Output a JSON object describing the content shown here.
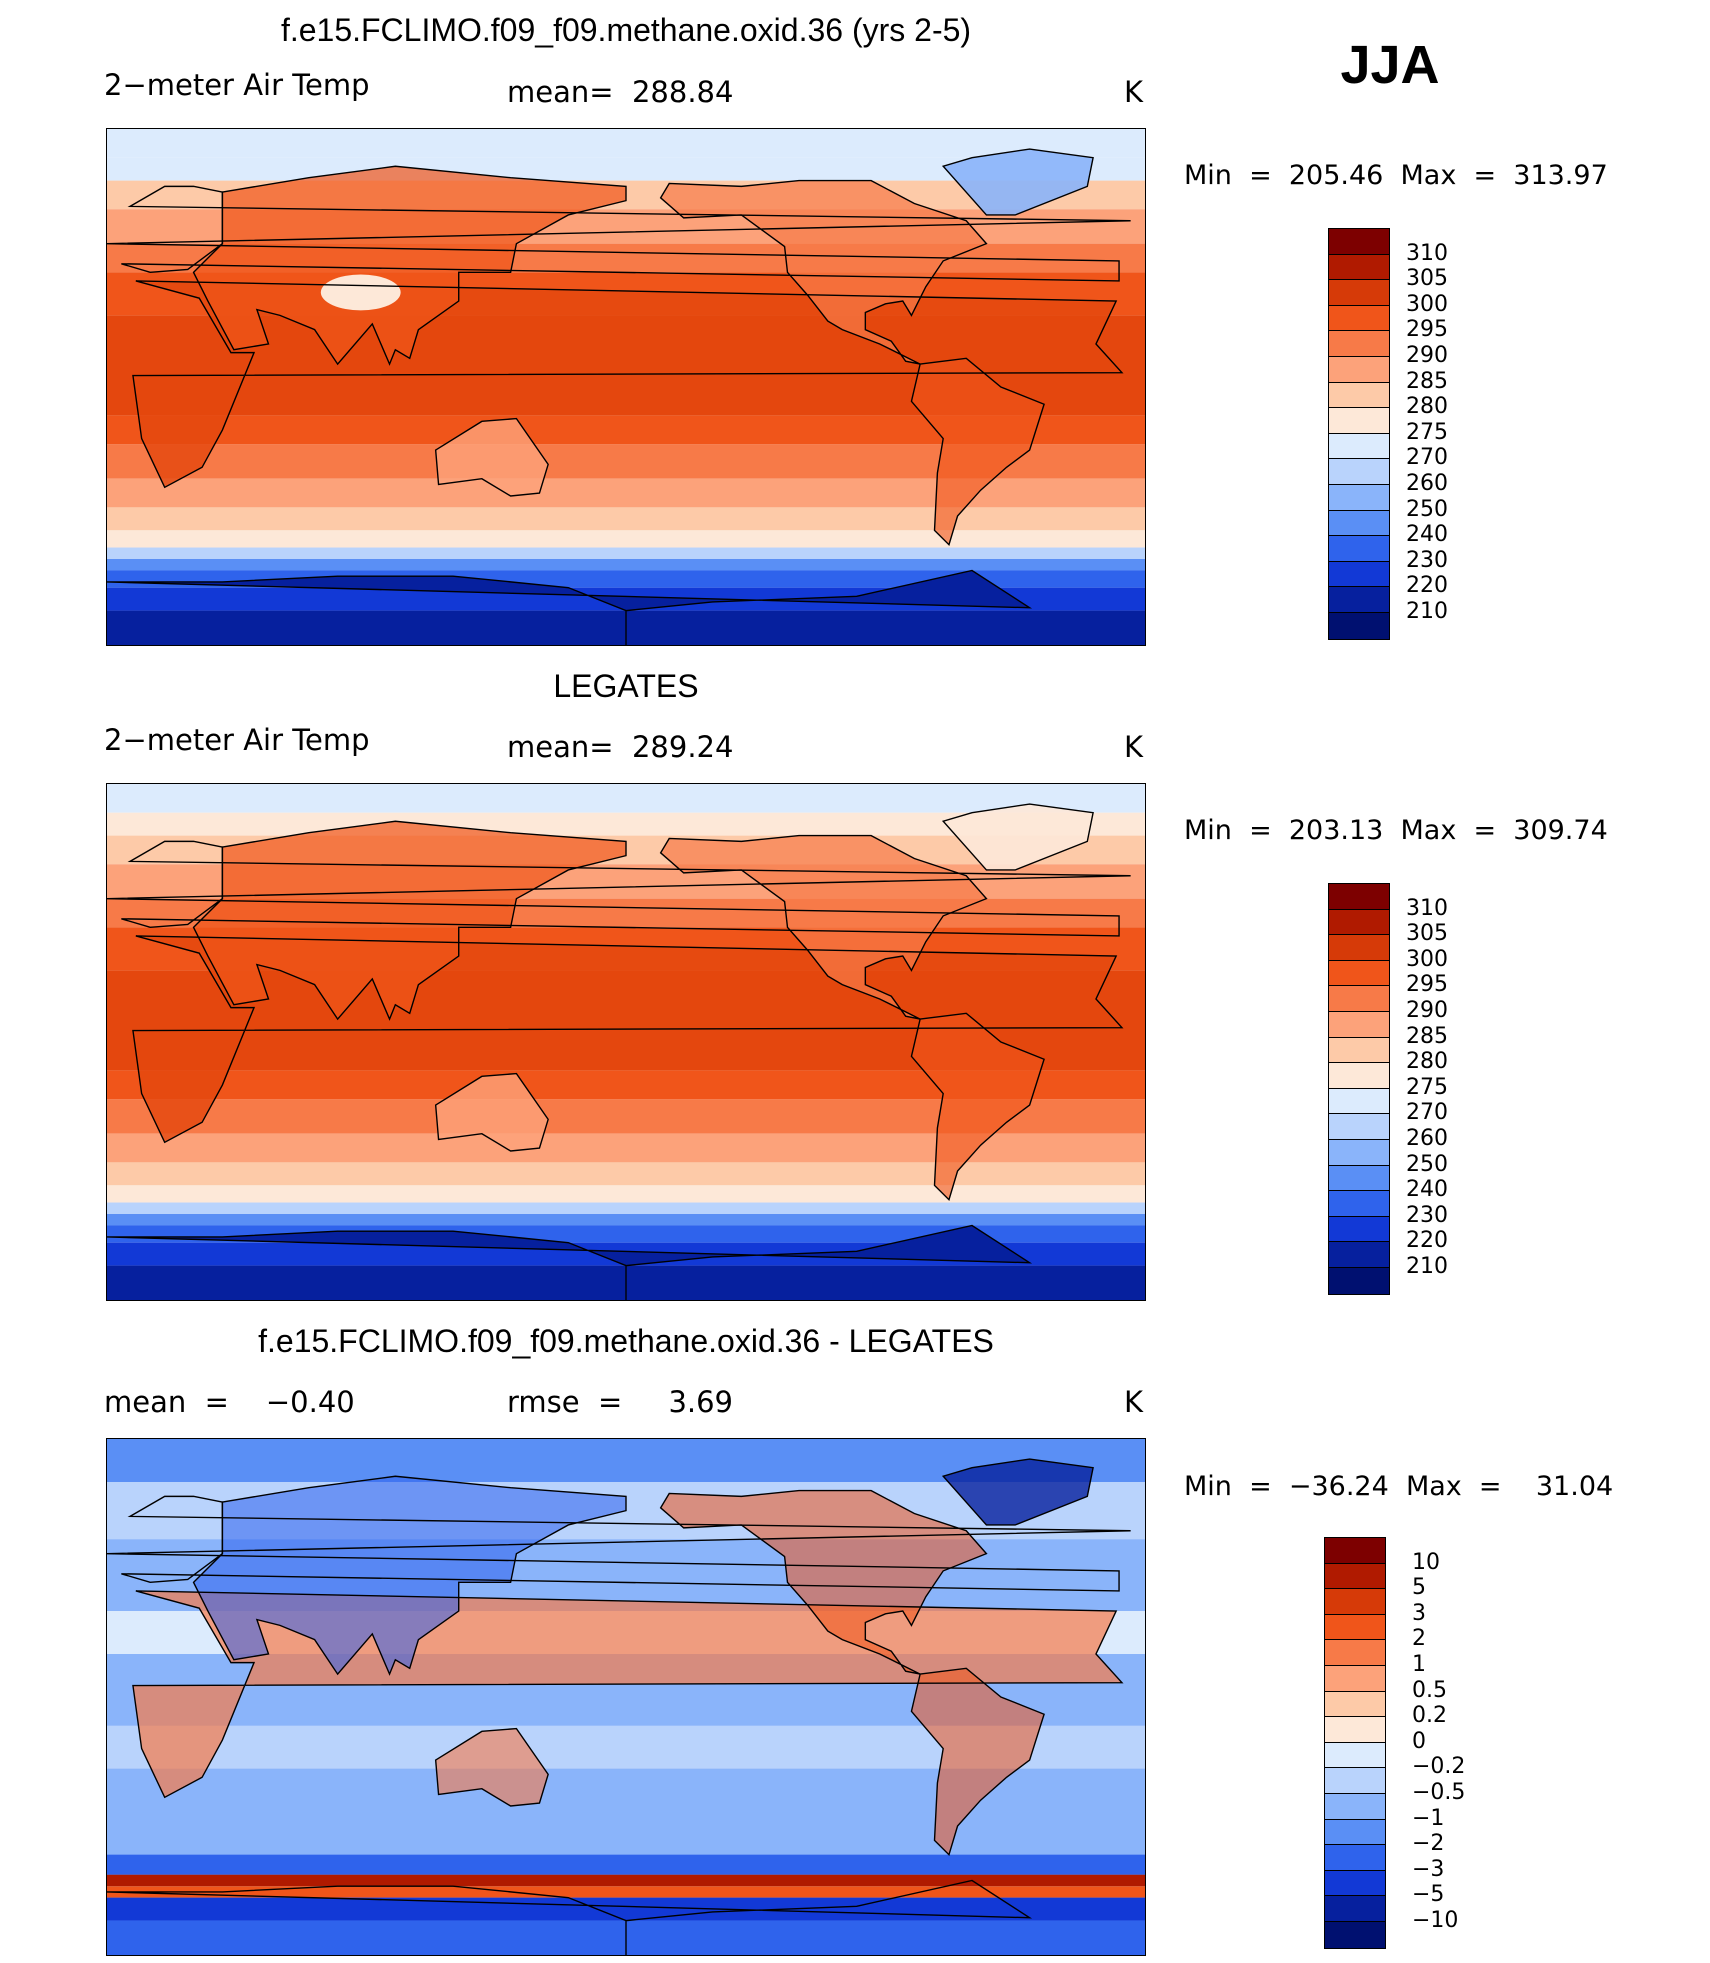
{
  "season": "JJA",
  "panels": [
    {
      "title": "f.e15.FCLIMO.f09_f09.methane.oxid.36 (yrs 2-5)",
      "left_label": "2−meter Air Temp",
      "mid_label": "mean=  288.84",
      "units": "K",
      "minmax": "Min  =  205.46  Max  =  313.97",
      "field": "model"
    },
    {
      "title": "LEGATES",
      "left_label": "2−meter Air Temp",
      "mid_label": "mean=  289.24",
      "units": "K",
      "minmax": "Min  =  203.13  Max  =  309.74",
      "field": "obs"
    },
    {
      "title": "f.e15.FCLIMO.f09_f09.methane.oxid.36 - LEGATES",
      "left_label": "mean  =    −0.40",
      "mid_label": "rmse  =     3.69",
      "units": "K",
      "minmax": "Min  =  −36.24  Max  =    31.04",
      "field": "diff"
    }
  ],
  "colorbar_abs": {
    "labels": [
      "310",
      "305",
      "300",
      "295",
      "290",
      "285",
      "280",
      "275",
      "270",
      "260",
      "250",
      "240",
      "230",
      "220",
      "210"
    ],
    "colors": [
      "#7d0000",
      "#b01a00",
      "#d63a08",
      "#f0551a",
      "#f77a48",
      "#fca27a",
      "#fdcaa8",
      "#fde8d8",
      "#dcebfd",
      "#b9d3fc",
      "#8ab4fa",
      "#5a8ff5",
      "#2f63ec",
      "#1239d6",
      "#06209e",
      "#001070"
    ]
  },
  "colorbar_diff": {
    "labels": [
      "10",
      "5",
      "3",
      "2",
      "1",
      "0.5",
      "0.2",
      "0",
      "−0.2",
      "−0.5",
      "−1",
      "−2",
      "−3",
      "−5",
      "−10"
    ],
    "colors": [
      "#7d0000",
      "#b01a00",
      "#d63a08",
      "#f0551a",
      "#f77a48",
      "#fca27a",
      "#fdcaa8",
      "#fde8d8",
      "#dcebfd",
      "#b9d3fc",
      "#8ab4fa",
      "#5a8ff5",
      "#2f63ec",
      "#1239d6",
      "#06209e",
      "#001070"
    ]
  }
}
